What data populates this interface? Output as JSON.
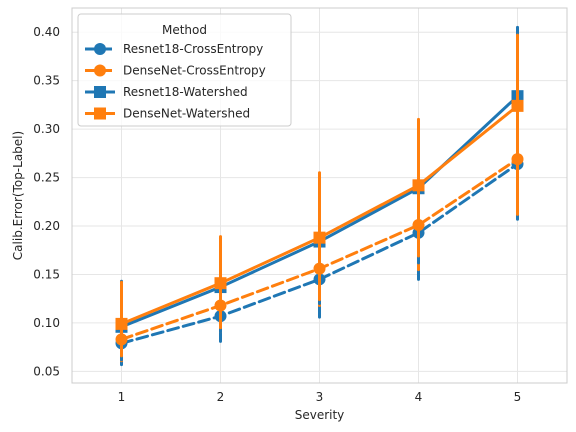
{
  "chart_data": {
    "type": "line",
    "xlabel": "Severity",
    "ylabel": "Calib.Error(Top-Label)",
    "x": [
      1,
      2,
      3,
      4,
      5
    ],
    "xlim": [
      0.5,
      5.5
    ],
    "ylim": [
      0.038,
      0.425
    ],
    "yticks": [
      0.05,
      0.1,
      0.15,
      0.2,
      0.25,
      0.3,
      0.35,
      0.4
    ],
    "ytick_labels": [
      "0.05",
      "0.10",
      "0.15",
      "0.20",
      "0.25",
      "0.30",
      "0.35",
      "0.40"
    ],
    "xtick_labels": [
      "1",
      "2",
      "3",
      "4",
      "5"
    ],
    "grid": true,
    "legend": {
      "title": "Method",
      "placement": "top-left"
    },
    "series": [
      {
        "name": "Resnet18-CrossEntropy",
        "color": "#1f77b4",
        "marker": "circle",
        "linestyle": "dashed",
        "values": [
          0.079,
          0.107,
          0.145,
          0.193,
          0.264
        ],
        "err_low": [
          0.057,
          0.081,
          0.106,
          0.145,
          0.207
        ],
        "err_high": [
          0.103,
          0.135,
          0.185,
          0.246,
          0.325
        ]
      },
      {
        "name": "DenseNet-CrossEntropy",
        "color": "#ff7f0e",
        "marker": "circle",
        "linestyle": "dashed",
        "values": [
          0.083,
          0.118,
          0.156,
          0.201,
          0.269
        ],
        "err_low": [
          0.061,
          0.091,
          0.118,
          0.155,
          0.212
        ],
        "err_high": [
          0.108,
          0.148,
          0.196,
          0.253,
          0.33
        ]
      },
      {
        "name": "Resnet18-Watershed",
        "color": "#1f77b4",
        "marker": "square",
        "linestyle": "solid",
        "values": [
          0.096,
          0.137,
          0.184,
          0.239,
          0.334
        ],
        "err_low": [
          0.062,
          0.091,
          0.12,
          0.162,
          0.266
        ],
        "err_high": [
          0.143,
          0.187,
          0.25,
          0.305,
          0.405
        ]
      },
      {
        "name": "DenseNet-Watershed",
        "color": "#ff7f0e",
        "marker": "square",
        "linestyle": "solid",
        "values": [
          0.099,
          0.141,
          0.188,
          0.242,
          0.324
        ],
        "err_low": [
          0.066,
          0.095,
          0.124,
          0.169,
          0.254
        ],
        "err_high": [
          0.142,
          0.189,
          0.255,
          0.31,
          0.397
        ]
      }
    ]
  }
}
